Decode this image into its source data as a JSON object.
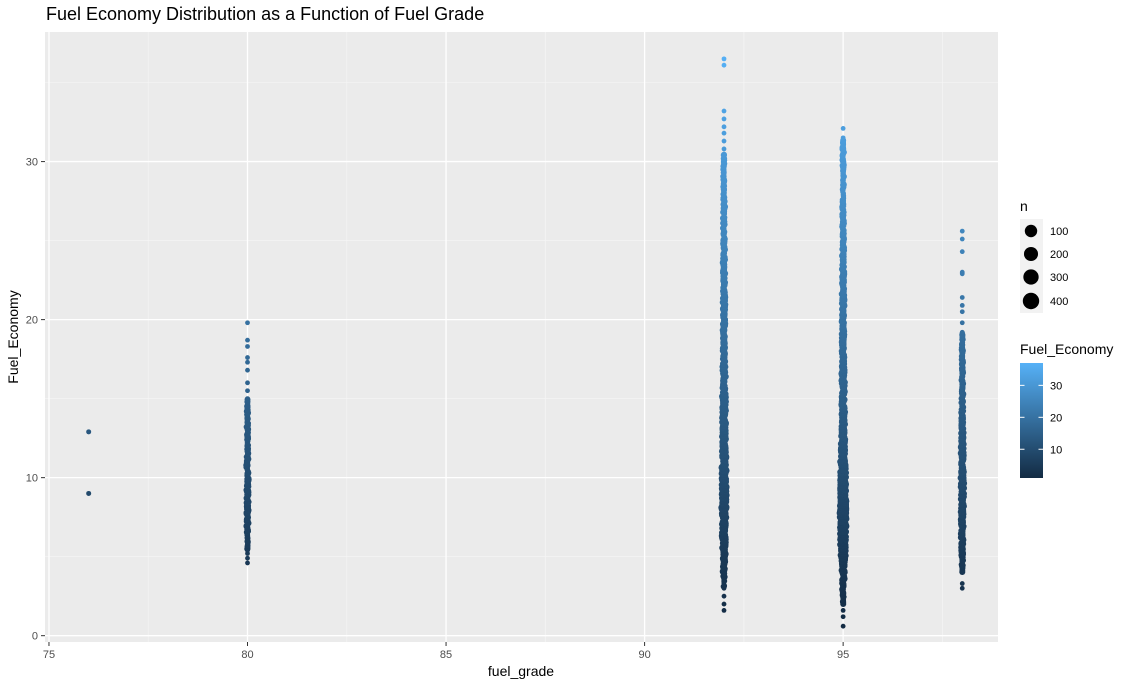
{
  "chart_data": {
    "type": "scatter",
    "title": "Fuel Economy Distribution as a Function of Fuel Grade",
    "xlabel": "fuel_grade",
    "ylabel": "Fuel_Economy",
    "xlim": [
      74.9,
      98.9
    ],
    "ylim": [
      -0.4,
      38.2
    ],
    "x_ticks": [
      75,
      80,
      85,
      90,
      95
    ],
    "y_ticks": [
      0,
      10,
      20,
      30
    ],
    "grid": true,
    "size_legend": {
      "title": "n",
      "entries": [
        {
          "label": "100",
          "value": 100
        },
        {
          "label": "200",
          "value": 200
        },
        {
          "label": "300",
          "value": 300
        },
        {
          "label": "400",
          "value": 400
        }
      ]
    },
    "color_legend": {
      "title": "Fuel_Economy",
      "ticks": [
        {
          "label": "30",
          "value": 30
        },
        {
          "label": "20",
          "value": 20
        },
        {
          "label": "10",
          "value": 10
        }
      ],
      "range": [
        1,
        37
      ],
      "low_color": "#132B43",
      "high_color": "#56B1F7"
    },
    "columns": [
      {
        "x": 76,
        "points": [
          9.0,
          12.9
        ]
      },
      {
        "x": 80,
        "min": 4.6,
        "max": 19.8,
        "dense": [
          [
            6.5,
            0.9
          ],
          [
            8.0,
            1.0
          ],
          [
            9.0,
            1.0
          ],
          [
            10.0,
            1.0
          ],
          [
            11.5,
            0.9
          ],
          [
            13.0,
            0.8
          ],
          [
            14.0,
            0.6
          ]
        ],
        "outliers": [
          4.6,
          4.9,
          5.2,
          5.4,
          6.0,
          14.5,
          15.0,
          15.5,
          16.0,
          16.8,
          17.3,
          17.6,
          18.3,
          18.7,
          19.8
        ]
      },
      {
        "x": 92,
        "min": 1.6,
        "max": 36.5,
        "dense": [
          [
            4.0,
            1.0
          ],
          [
            5.0,
            1.4
          ],
          [
            6.0,
            1.8
          ],
          [
            7.0,
            2.0
          ],
          [
            8.0,
            2.2
          ],
          [
            9.0,
            2.4
          ],
          [
            10.0,
            2.3
          ],
          [
            11.0,
            2.1
          ],
          [
            12.0,
            1.9
          ],
          [
            13.0,
            1.8
          ],
          [
            14.0,
            1.7
          ],
          [
            15.0,
            1.7
          ],
          [
            16.0,
            1.5
          ],
          [
            17.0,
            1.4
          ],
          [
            18.0,
            1.3
          ],
          [
            20.0,
            1.2
          ],
          [
            22.0,
            1.1
          ],
          [
            24.0,
            1.0
          ],
          [
            26.0,
            0.9
          ],
          [
            28.0,
            0.8
          ],
          [
            29.5,
            0.6
          ]
        ],
        "outliers": [
          1.6,
          2.0,
          2.5,
          3.0,
          3.4,
          30.3,
          30.8,
          31.3,
          31.8,
          32.2,
          32.7,
          33.2,
          36.1,
          36.5
        ]
      },
      {
        "x": 95,
        "min": 0.6,
        "max": 32.1,
        "dense": [
          [
            3.0,
            0.9
          ],
          [
            4.0,
            1.3
          ],
          [
            5.0,
            2.1
          ],
          [
            6.0,
            2.7
          ],
          [
            7.0,
            3.0
          ],
          [
            8.0,
            3.1
          ],
          [
            9.0,
            3.0
          ],
          [
            10.0,
            2.7
          ],
          [
            11.0,
            2.4
          ],
          [
            12.0,
            2.1
          ],
          [
            13.0,
            1.9
          ],
          [
            14.0,
            1.7
          ],
          [
            15.0,
            1.5
          ],
          [
            16.0,
            1.4
          ],
          [
            18.0,
            1.3
          ],
          [
            20.0,
            1.2
          ],
          [
            22.0,
            1.1
          ],
          [
            24.0,
            1.0
          ],
          [
            26.0,
            0.9
          ],
          [
            28.0,
            0.8
          ],
          [
            30.5,
            0.6
          ]
        ],
        "outliers": [
          0.6,
          1.2,
          1.6,
          2.2,
          2.7,
          31.0,
          31.5,
          32.1
        ]
      },
      {
        "x": 98,
        "min": 3.0,
        "max": 25.6,
        "dense": [
          [
            5.0,
            1.0
          ],
          [
            6.5,
            1.2
          ],
          [
            8.0,
            1.4
          ],
          [
            9.0,
            1.5
          ],
          [
            10.0,
            1.5
          ],
          [
            11.0,
            1.4
          ],
          [
            12.0,
            1.3
          ],
          [
            13.0,
            1.2
          ],
          [
            14.5,
            1.0
          ],
          [
            16.0,
            0.8
          ],
          [
            17.5,
            0.6
          ],
          [
            18.2,
            0.5
          ]
        ],
        "outliers": [
          3.0,
          3.3,
          4.5,
          18.5,
          19.2,
          19.8,
          20.5,
          20.9,
          21.4,
          22.9,
          23.0,
          24.3,
          25.1,
          25.6
        ]
      }
    ]
  }
}
